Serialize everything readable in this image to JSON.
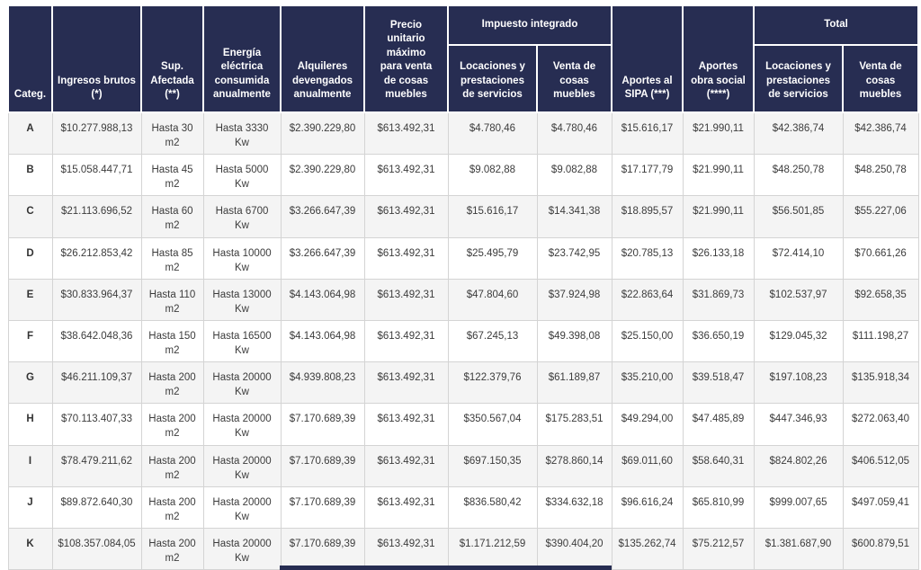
{
  "chart_data": {
    "type": "table",
    "header": {
      "categ": "Categ.",
      "ingresos_brutos": "Ingresos brutos (*)",
      "sup_afectada": "Sup. Afectada (**)",
      "energia": "Energía eléctrica consumida anualmente",
      "alquileres": "Alquileres devengados anualmente",
      "precio_unitario": "Precio unitario máximo para venta de cosas muebles",
      "impuesto_integrado": "Impuesto integrado",
      "impuesto_servicios": "Locaciones y prestaciones de servicios",
      "impuesto_muebles": "Venta de cosas muebles",
      "aportes_sipa": "Aportes al SIPA (***)",
      "aportes_obra_social": "Aportes obra social (****)",
      "total": "Total",
      "total_servicios": "Locaciones y prestaciones de servicios",
      "total_muebles": "Venta de cosas muebles"
    },
    "rows": [
      {
        "categ": "A",
        "ingresos": "$10.277.988,13",
        "sup": "Hasta 30 m2",
        "energia": "Hasta 3330 Kw",
        "alquileres": "$2.390.229,80",
        "precio": "$613.492,31",
        "imp_serv": "$4.780,46",
        "imp_muebles": "$4.780,46",
        "sipa": "$15.616,17",
        "obra_social": "$21.990,11",
        "total_serv": "$42.386,74",
        "total_muebles": "$42.386,74"
      },
      {
        "categ": "B",
        "ingresos": "$15.058.447,71",
        "sup": "Hasta 45 m2",
        "energia": "Hasta 5000 Kw",
        "alquileres": "$2.390.229,80",
        "precio": "$613.492,31",
        "imp_serv": "$9.082,88",
        "imp_muebles": "$9.082,88",
        "sipa": "$17.177,79",
        "obra_social": "$21.990,11",
        "total_serv": "$48.250,78",
        "total_muebles": "$48.250,78"
      },
      {
        "categ": "C",
        "ingresos": "$21.113.696,52",
        "sup": "Hasta 60 m2",
        "energia": "Hasta 6700 Kw",
        "alquileres": "$3.266.647,39",
        "precio": "$613.492,31",
        "imp_serv": "$15.616,17",
        "imp_muebles": "$14.341,38",
        "sipa": "$18.895,57",
        "obra_social": "$21.990,11",
        "total_serv": "$56.501,85",
        "total_muebles": "$55.227,06"
      },
      {
        "categ": "D",
        "ingresos": "$26.212.853,42",
        "sup": "Hasta 85 m2",
        "energia": "Hasta 10000 Kw",
        "alquileres": "$3.266.647,39",
        "precio": "$613.492,31",
        "imp_serv": "$25.495,79",
        "imp_muebles": "$23.742,95",
        "sipa": "$20.785,13",
        "obra_social": "$26.133,18",
        "total_serv": "$72.414,10",
        "total_muebles": "$70.661,26"
      },
      {
        "categ": "E",
        "ingresos": "$30.833.964,37",
        "sup": "Hasta 110 m2",
        "energia": "Hasta 13000 Kw",
        "alquileres": "$4.143.064,98",
        "precio": "$613.492,31",
        "imp_serv": "$47.804,60",
        "imp_muebles": "$37.924,98",
        "sipa": "$22.863,64",
        "obra_social": "$31.869,73",
        "total_serv": "$102.537,97",
        "total_muebles": "$92.658,35"
      },
      {
        "categ": "F",
        "ingresos": "$38.642.048,36",
        "sup": "Hasta 150 m2",
        "energia": "Hasta 16500 Kw",
        "alquileres": "$4.143.064,98",
        "precio": "$613.492,31",
        "imp_serv": "$67.245,13",
        "imp_muebles": "$49.398,08",
        "sipa": "$25.150,00",
        "obra_social": "$36.650,19",
        "total_serv": "$129.045,32",
        "total_muebles": "$111.198,27"
      },
      {
        "categ": "G",
        "ingresos": "$46.211.109,37",
        "sup": "Hasta 200 m2",
        "energia": "Hasta 20000 Kw",
        "alquileres": "$4.939.808,23",
        "precio": "$613.492,31",
        "imp_serv": "$122.379,76",
        "imp_muebles": "$61.189,87",
        "sipa": "$35.210,00",
        "obra_social": "$39.518,47",
        "total_serv": "$197.108,23",
        "total_muebles": "$135.918,34"
      },
      {
        "categ": "H",
        "ingresos": "$70.113.407,33",
        "sup": "Hasta 200 m2",
        "energia": "Hasta 20000 Kw",
        "alquileres": "$7.170.689,39",
        "precio": "$613.492,31",
        "imp_serv": "$350.567,04",
        "imp_muebles": "$175.283,51",
        "sipa": "$49.294,00",
        "obra_social": "$47.485,89",
        "total_serv": "$447.346,93",
        "total_muebles": "$272.063,40"
      },
      {
        "categ": "I",
        "ingresos": "$78.479.211,62",
        "sup": "Hasta 200 m2",
        "energia": "Hasta 20000 Kw",
        "alquileres": "$7.170.689,39",
        "precio": "$613.492,31",
        "imp_serv": "$697.150,35",
        "imp_muebles": "$278.860,14",
        "sipa": "$69.011,60",
        "obra_social": "$58.640,31",
        "total_serv": "$824.802,26",
        "total_muebles": "$406.512,05"
      },
      {
        "categ": "J",
        "ingresos": "$89.872.640,30",
        "sup": "Hasta 200 m2",
        "energia": "Hasta 20000 Kw",
        "alquileres": "$7.170.689,39",
        "precio": "$613.492,31",
        "imp_serv": "$836.580,42",
        "imp_muebles": "$334.632,18",
        "sipa": "$96.616,24",
        "obra_social": "$65.810,99",
        "total_serv": "$999.007,65",
        "total_muebles": "$497.059,41"
      },
      {
        "categ": "K",
        "ingresos": "$108.357.084,05",
        "sup": "Hasta 200 m2",
        "energia": "Hasta 20000 Kw",
        "alquileres": "$7.170.689,39",
        "precio": "$613.492,31",
        "imp_serv": "$1.171.212,59",
        "imp_muebles": "$390.404,20",
        "sipa": "$135.262,74",
        "obra_social": "$75.212,57",
        "total_serv": "$1.381.687,90",
        "total_muebles": "$600.879,51"
      }
    ],
    "layout": {
      "column_order": [
        "categ",
        "ingresos",
        "sup",
        "energia",
        "alquileres",
        "precio",
        "imp_serv",
        "imp_muebles",
        "sipa",
        "obra_social",
        "total_serv",
        "total_muebles"
      ],
      "grid": "on",
      "striped_rows": "A,C,E,G,I,K shaded"
    }
  },
  "colors": {
    "header_bg": "#272d52",
    "header_text": "#ffffff",
    "row_alt_bg": "#f4f4f4",
    "row_bg": "#ffffff",
    "border": "#d4d4d4",
    "text": "#3c3c3c"
  }
}
